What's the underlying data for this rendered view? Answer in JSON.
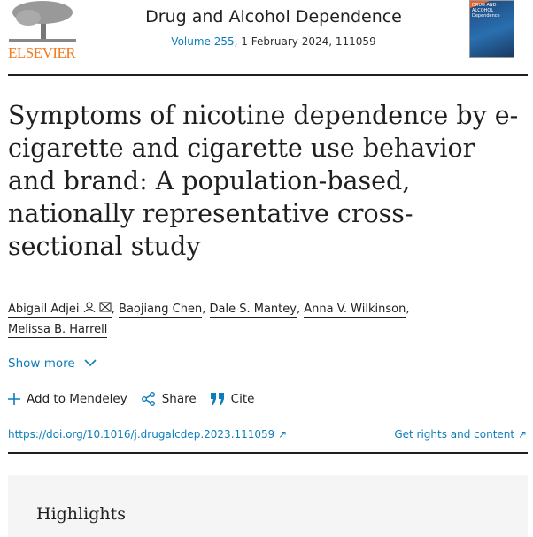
{
  "publisher": {
    "logo_text": "ELSEVIER",
    "brand_color": "#f47a20"
  },
  "journal": {
    "name": "Drug and Alcohol Dependence",
    "volume_link": "Volume 255",
    "volume_rest": ", 1 February 2024, 111059",
    "cover_text": "DRUG AND ALCOHOL Dependence"
  },
  "article": {
    "title": "Symptoms of nicotine dependence by e-cigarette and cigarette use behavior and brand: A population-based, nationally representative cross-sectional study",
    "authors": [
      "Abigail Adjei",
      "Baojiang Chen",
      "Dale S. Mantey",
      "Anna V. Wilkinson",
      "Melissa B. Harrell"
    ],
    "show_more": "Show more",
    "actions": {
      "mendeley": "Add to Mendeley",
      "share": "Share",
      "cite": "Cite"
    },
    "doi": "https://doi.org/10.1016/j.drugalcdep.2023.111059",
    "rights": "Get rights and content",
    "highlights_heading": "Highlights"
  },
  "colors": {
    "link": "#0c7dbb",
    "text": "#1f1f1f"
  }
}
